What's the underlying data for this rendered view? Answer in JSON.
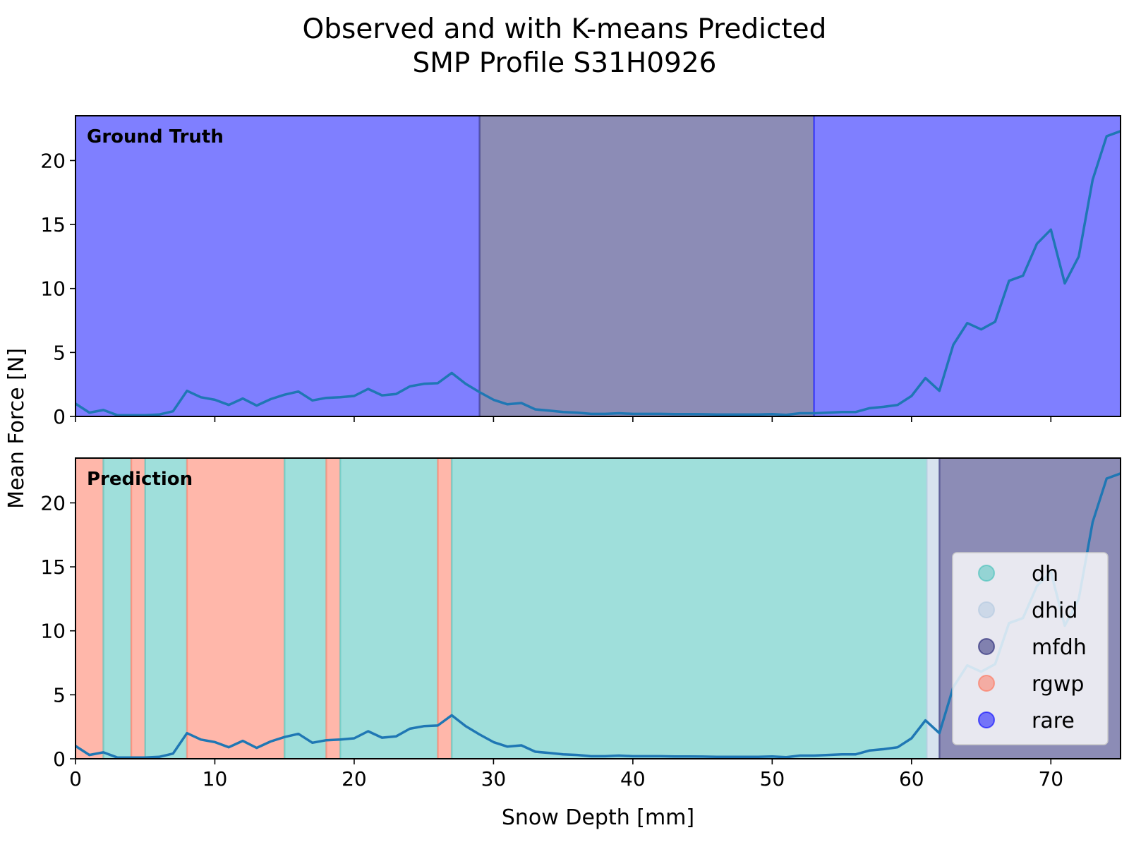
{
  "title_line1": "Observed and with K-means Predicted",
  "title_line2": "SMP Profile S31H0926",
  "ylabel": "Mean Force [N]",
  "xlabel": "Snow Depth [mm]",
  "colors": {
    "dh": "#40c0b8",
    "dhid": "#b0c8e0",
    "mfdh": "#1a1a6e",
    "rgwp": "#ff6f55",
    "rare": "#0000ff",
    "line": "#1f77b4"
  },
  "legend": [
    "dh",
    "dhid",
    "mfdh",
    "rgwp",
    "rare"
  ],
  "chart_data": {
    "type": "line",
    "x": [
      0,
      1,
      2,
      3,
      4,
      5,
      6,
      7,
      8,
      9,
      10,
      11,
      12,
      13,
      14,
      15,
      16,
      17,
      18,
      19,
      20,
      21,
      22,
      23,
      24,
      25,
      26,
      27,
      28,
      29,
      30,
      31,
      32,
      33,
      34,
      35,
      36,
      37,
      38,
      39,
      40,
      41,
      42,
      43,
      44,
      45,
      46,
      47,
      48,
      49,
      50,
      51,
      52,
      53,
      54,
      55,
      56,
      57,
      58,
      59,
      60,
      61,
      62,
      63,
      64,
      65,
      66,
      67,
      68,
      69,
      70,
      71,
      72,
      73,
      74,
      75
    ],
    "y": [
      1.0,
      0.3,
      0.5,
      0.1,
      0.1,
      0.1,
      0.15,
      0.4,
      2.0,
      1.5,
      1.3,
      0.9,
      1.4,
      0.85,
      1.35,
      1.7,
      1.95,
      1.25,
      1.45,
      1.5,
      1.6,
      2.15,
      1.65,
      1.75,
      2.35,
      2.55,
      2.6,
      3.4,
      2.55,
      1.9,
      1.3,
      0.95,
      1.05,
      0.55,
      0.45,
      0.35,
      0.3,
      0.2,
      0.2,
      0.25,
      0.2,
      0.2,
      0.2,
      0.18,
      0.18,
      0.17,
      0.15,
      0.15,
      0.15,
      0.15,
      0.18,
      0.12,
      0.25,
      0.25,
      0.3,
      0.35,
      0.35,
      0.65,
      0.75,
      0.9,
      1.6,
      3.0,
      2.0,
      5.6,
      7.3,
      6.8,
      7.4,
      10.6,
      11.0,
      13.5,
      14.6,
      10.4,
      12.5,
      18.5,
      21.9,
      22.3
    ],
    "xlim": [
      0,
      75
    ],
    "ylim": [
      0,
      23.5
    ],
    "xticks": [
      0,
      10,
      20,
      30,
      40,
      50,
      60,
      70
    ],
    "yticks": [
      0,
      5,
      10,
      15,
      20
    ],
    "panels": [
      {
        "label": "Ground Truth",
        "segments": [
          {
            "start": 0,
            "end": 29,
            "class": "rare"
          },
          {
            "start": 29,
            "end": 53,
            "class": "mfdh"
          },
          {
            "start": 53,
            "end": 75,
            "class": "rare"
          }
        ]
      },
      {
        "label": "Prediction",
        "segments": [
          {
            "start": 0,
            "end": 2,
            "class": "rgwp"
          },
          {
            "start": 2,
            "end": 4,
            "class": "dh"
          },
          {
            "start": 4,
            "end": 5,
            "class": "rgwp"
          },
          {
            "start": 5,
            "end": 8,
            "class": "dh"
          },
          {
            "start": 8,
            "end": 15,
            "class": "rgwp"
          },
          {
            "start": 15,
            "end": 18,
            "class": "dh"
          },
          {
            "start": 18,
            "end": 19,
            "class": "rgwp"
          },
          {
            "start": 19,
            "end": 26,
            "class": "dh"
          },
          {
            "start": 26,
            "end": 27,
            "class": "rgwp"
          },
          {
            "start": 27,
            "end": 61.1,
            "class": "dh"
          },
          {
            "start": 61.1,
            "end": 62,
            "class": "dhid"
          },
          {
            "start": 62,
            "end": 75,
            "class": "mfdh"
          }
        ]
      }
    ],
    "legend_placement": "lower-right of bottom panel"
  }
}
